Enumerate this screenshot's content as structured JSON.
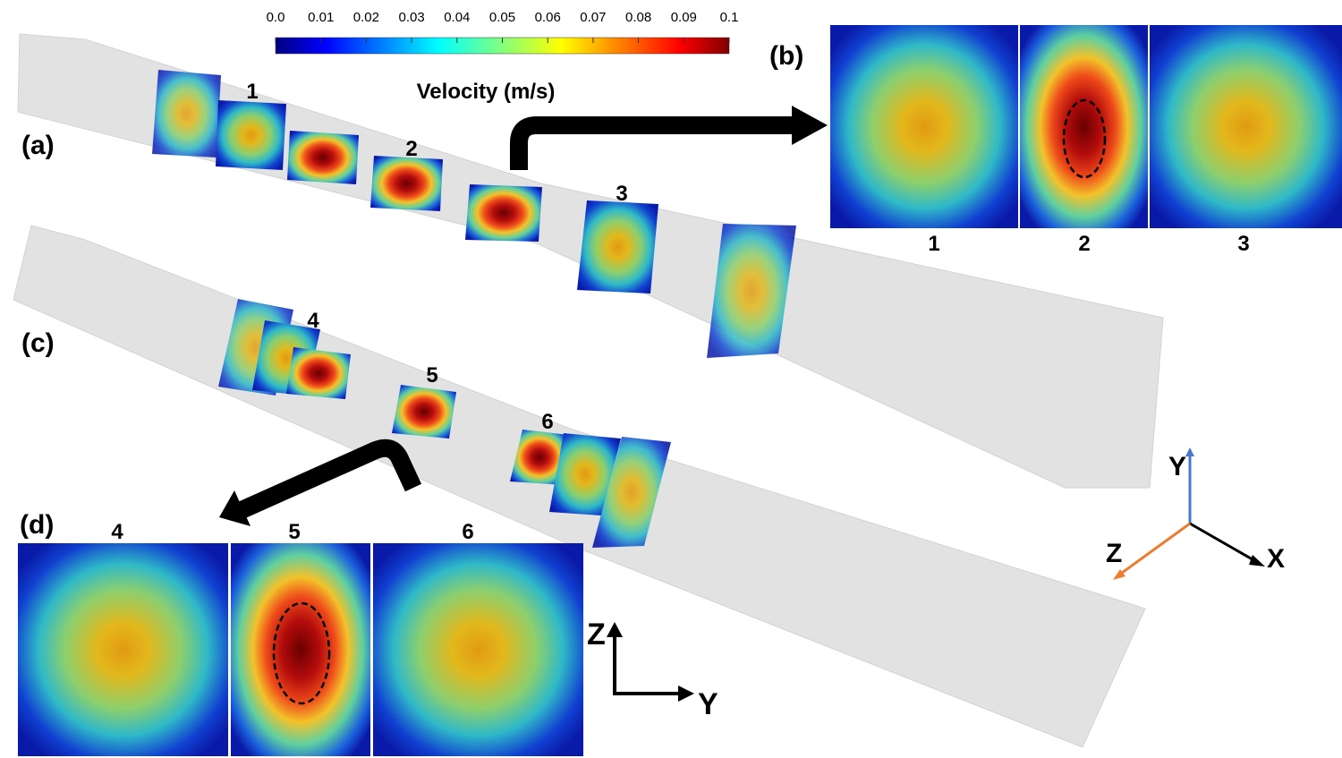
{
  "colorbar": {
    "label": "Velocity (m/s)",
    "lim": [
      0,
      0.1
    ],
    "ticks": [
      {
        "value": 0,
        "label": "0.0"
      },
      0.01,
      0.02,
      0.03,
      0.04,
      0.05,
      0.06,
      0.07,
      0.08,
      0.09,
      0.1
    ]
  },
  "panel_labels": [
    "(a)",
    "(b)",
    "(c)",
    "(d)"
  ],
  "channel_a": {
    "section_labels": [
      "1",
      "2",
      "3"
    ]
  },
  "channel_c": {
    "section_labels": [
      "4",
      "5",
      "6"
    ]
  },
  "panel_b": {
    "labels": [
      "1",
      "2",
      "3"
    ]
  },
  "panel_d": {
    "labels": [
      "4",
      "5",
      "6"
    ]
  },
  "axes_3d": [
    "Y",
    "Z",
    "X"
  ],
  "axes_2d": [
    "Z",
    "Y"
  ]
}
